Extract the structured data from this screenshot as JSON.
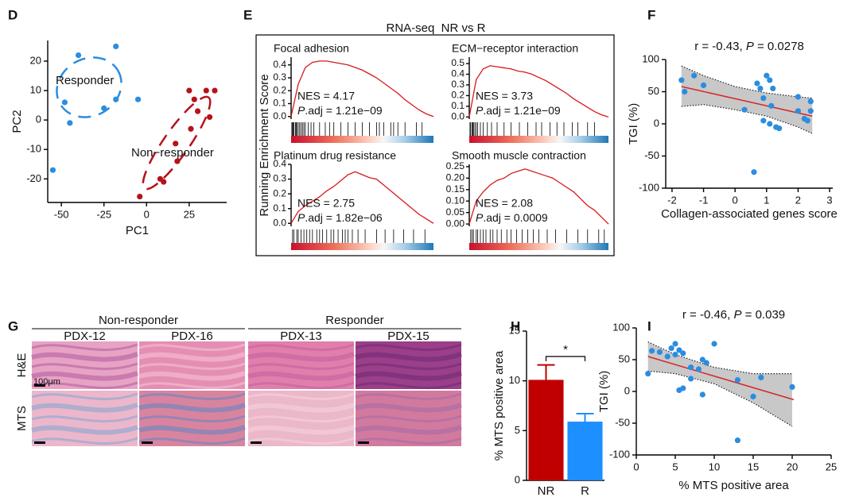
{
  "chart_data": [
    {
      "type": "scatter",
      "panel": "D",
      "xlabel": "PC1",
      "ylabel": "PC2",
      "xlim": [
        -58,
        47
      ],
      "ylim": [
        -28,
        27
      ],
      "xticks": [
        -50,
        -25,
        0,
        25
      ],
      "yticks": [
        -20,
        -10,
        0,
        10,
        20
      ],
      "series": [
        {
          "name": "Responder",
          "color": "#2b8de0",
          "x": [
            -18,
            -40,
            -48,
            -45,
            -25,
            -18,
            -5,
            -55
          ],
          "y": [
            25,
            22,
            6,
            -1,
            4,
            7,
            7,
            -17
          ]
        },
        {
          "name": "Non−responder",
          "color": "#b5121b",
          "x": [
            25,
            28,
            35,
            40,
            37,
            30,
            26,
            17,
            18,
            8,
            10,
            -4
          ],
          "y": [
            10,
            7,
            10,
            10,
            1,
            3,
            -3,
            -8,
            -14,
            -20,
            -21,
            -26
          ]
        }
      ]
    },
    {
      "type": "gsea",
      "panel": "E",
      "title": "RNA-seq  NR vs R",
      "ylabel": "Running Enrichment Score",
      "color": "#d7191c",
      "panels": [
        {
          "title": "Focal adhesion",
          "nes": "NES = 4.17",
          "padj": [
            "P",
            ".adj = 1.21e−09"
          ],
          "ylim": [
            -0.02,
            0.46
          ],
          "yticks": [
            {
              "value": 0,
              "label": "0.0"
            },
            0.1,
            0.2,
            0.3,
            0.4
          ],
          "values": [
            0,
            0.25,
            0.38,
            0.42,
            0.43,
            0.43,
            0.42,
            0.41,
            0.4,
            0.38,
            0.36,
            0.33,
            0.3,
            0.26,
            0.22,
            0.18,
            0.13,
            0.09,
            0.05,
            0.02,
            0
          ],
          "hits": [
            0.005,
            0.01,
            0.015,
            0.02,
            0.03,
            0.035,
            0.04,
            0.05,
            0.06,
            0.07,
            0.08,
            0.09,
            0.1,
            0.12,
            0.14,
            0.16,
            0.2,
            0.24,
            0.27,
            0.3,
            0.35,
            0.4,
            0.45,
            0.5,
            0.55,
            0.6,
            0.62,
            0.65,
            0.7,
            0.72,
            0.75,
            0.8,
            0.88,
            0.92
          ]
        },
        {
          "title": "ECM−receptor interaction",
          "nes": "NES = 3.73",
          "padj": [
            "P",
            ".adj = 1.21e−09"
          ],
          "ylim": [
            -0.02,
            0.56
          ],
          "yticks": [
            {
              "value": 0,
              "label": "0.0"
            },
            0.1,
            0.2,
            0.3,
            0.4,
            0.5
          ],
          "values": [
            0,
            0.35,
            0.45,
            0.48,
            0.47,
            0.46,
            0.45,
            0.43,
            0.42,
            0.4,
            0.37,
            0.34,
            0.3,
            0.26,
            0.22,
            0.17,
            0.13,
            0.09,
            0.05,
            0.02,
            0
          ],
          "hits": [
            0.005,
            0.01,
            0.02,
            0.025,
            0.03,
            0.04,
            0.05,
            0.06,
            0.08,
            0.1,
            0.13,
            0.16,
            0.2,
            0.25,
            0.3,
            0.36,
            0.42,
            0.48,
            0.52,
            0.58,
            0.63,
            0.68,
            0.74,
            0.78,
            0.85,
            0.9
          ]
        },
        {
          "title": "Platinum drug resistance",
          "nes": "NES = 2.75",
          "padj": [
            "P",
            ".adj = 1.82e−06"
          ],
          "ylim": [
            -0.02,
            0.4
          ],
          "yticks": [
            {
              "value": 0,
              "label": "0.0"
            },
            0.1,
            0.2,
            0.3,
            0.4
          ],
          "values": [
            0,
            0.08,
            0.12,
            0.15,
            0.18,
            0.22,
            0.25,
            0.29,
            0.33,
            0.35,
            0.33,
            0.31,
            0.3,
            0.26,
            0.22,
            0.18,
            0.14,
            0.1,
            0.06,
            0.03,
            0
          ],
          "hits": [
            0.01,
            0.02,
            0.04,
            0.05,
            0.07,
            0.09,
            0.11,
            0.13,
            0.15,
            0.18,
            0.2,
            0.22,
            0.25,
            0.28,
            0.3,
            0.33,
            0.36,
            0.38,
            0.4,
            0.43,
            0.47,
            0.52,
            0.6,
            0.66,
            0.72,
            0.79,
            0.86,
            0.94
          ]
        },
        {
          "title": "Smooth muscle contraction",
          "nes": "NES = 2.08",
          "padj": [
            "P",
            ".adj = 0.0009"
          ],
          "ylim": [
            -0.01,
            0.26
          ],
          "yticks": [
            {
              "value": 0,
              "label": "0.00"
            },
            0.05,
            {
              "value": 0.1,
              "label": "0.10"
            },
            0.15,
            {
              "value": 0.2,
              "label": "0.20"
            },
            0.25
          ],
          "values": [
            0,
            0.1,
            0.14,
            0.17,
            0.19,
            0.2,
            0.22,
            0.23,
            0.24,
            0.23,
            0.22,
            0.21,
            0.2,
            0.18,
            0.16,
            0.14,
            0.11,
            0.08,
            0.06,
            0.03,
            0
          ],
          "hits": [
            0.01,
            0.02,
            0.03,
            0.05,
            0.06,
            0.08,
            0.1,
            0.12,
            0.15,
            0.17,
            0.2,
            0.23,
            0.27,
            0.3,
            0.34,
            0.38,
            0.42,
            0.46,
            0.5,
            0.56,
            0.62,
            0.7,
            0.78,
            0.85,
            0.93,
            0.97
          ]
        }
      ]
    },
    {
      "type": "scatter",
      "panel": "F",
      "title": [
        "r = -0.43, ",
        "P",
        " = 0.0278"
      ],
      "xlabel": "Collagen-associated genes score",
      "ylabel": "TGI (%)",
      "xlim": [
        -2.2,
        3.1
      ],
      "ylim": [
        -100,
        100
      ],
      "xticks": [
        -2,
        -1,
        0,
        1,
        2,
        3
      ],
      "yticks": [
        -100,
        -50,
        0,
        50,
        100
      ],
      "band": {
        "x": [
          -1.7,
          -1,
          0,
          1,
          2,
          2.45
        ],
        "upper": [
          90,
          75,
          58,
          48,
          42,
          40
        ],
        "lower": [
          27,
          30,
          22,
          12,
          -5,
          -15
        ],
        "color": "#c8c8c8"
      },
      "fit": {
        "x": [
          -1.7,
          2.45
        ],
        "y": [
          58,
          12
        ],
        "color": "#d62728"
      },
      "series": [
        {
          "color": "#2b8de0",
          "x": [
            -1.7,
            -1.6,
            -1.3,
            -1.0,
            0.7,
            0.8,
            1.0,
            1.1,
            1.2,
            0.9,
            1.15,
            0.3,
            0.9,
            1.1,
            1.3,
            1.4,
            2.0,
            2.0,
            2.2,
            2.3,
            2.4,
            2.4,
            0.6
          ],
          "y": [
            68,
            50,
            75,
            60,
            63,
            55,
            75,
            68,
            55,
            40,
            28,
            22,
            5,
            0,
            -5,
            -7,
            42,
            20,
            8,
            5,
            35,
            20,
            -75
          ]
        }
      ]
    },
    {
      "type": "image_grid",
      "panel": "G",
      "groups": [
        {
          "label": "Non-responder",
          "columns": [
            "PDX-12",
            "PDX-16"
          ]
        },
        {
          "label": "Responder",
          "columns": [
            "PDX-13",
            "PDX-15"
          ]
        }
      ],
      "rows": [
        "H&E",
        "MTS"
      ],
      "scale_bar": "100μm"
    },
    {
      "type": "bar",
      "panel": "H",
      "ylabel": "% MTS positive area",
      "categories": [
        "NR",
        "R"
      ],
      "values": [
        10.1,
        5.9
      ],
      "errors": [
        1.5,
        0.8
      ],
      "colors": [
        "#c00000",
        "#1e8fff"
      ],
      "ylim": [
        0,
        15
      ],
      "yticks": [
        0,
        5,
        10,
        15
      ],
      "significance": "*"
    },
    {
      "type": "scatter",
      "panel": "I",
      "title": [
        "r = -0.46, ",
        "P",
        " = 0.039"
      ],
      "xlabel": "% MTS positive area",
      "ylabel": "TGI (%)",
      "xlim": [
        0,
        25
      ],
      "ylim": [
        -100,
        100
      ],
      "xticks": [
        0,
        5,
        10,
        15,
        20,
        25
      ],
      "yticks": [
        -100,
        -50,
        0,
        50,
        100
      ],
      "band": {
        "x": [
          1.5,
          5,
          10,
          15,
          20
        ],
        "upper": [
          78,
          58,
          38,
          28,
          28
        ],
        "lower": [
          32,
          28,
          12,
          -18,
          -55
        ],
        "color": "#c8c8c8"
      },
      "fit": {
        "x": [
          1.5,
          20.2
        ],
        "y": [
          55,
          -13
        ],
        "color": "#d62728"
      },
      "series": [
        {
          "color": "#2b8de0",
          "x": [
            1.5,
            2,
            3,
            4,
            4.5,
            5,
            5,
            5.5,
            6,
            6,
            5.5,
            7,
            7,
            8,
            8.5,
            9,
            10,
            8.5,
            13,
            15,
            16,
            20,
            13
          ],
          "y": [
            28,
            64,
            62,
            55,
            68,
            75,
            58,
            65,
            60,
            5,
            2,
            38,
            20,
            35,
            50,
            45,
            75,
            -5,
            18,
            -8,
            22,
            7,
            -77
          ]
        }
      ]
    }
  ]
}
